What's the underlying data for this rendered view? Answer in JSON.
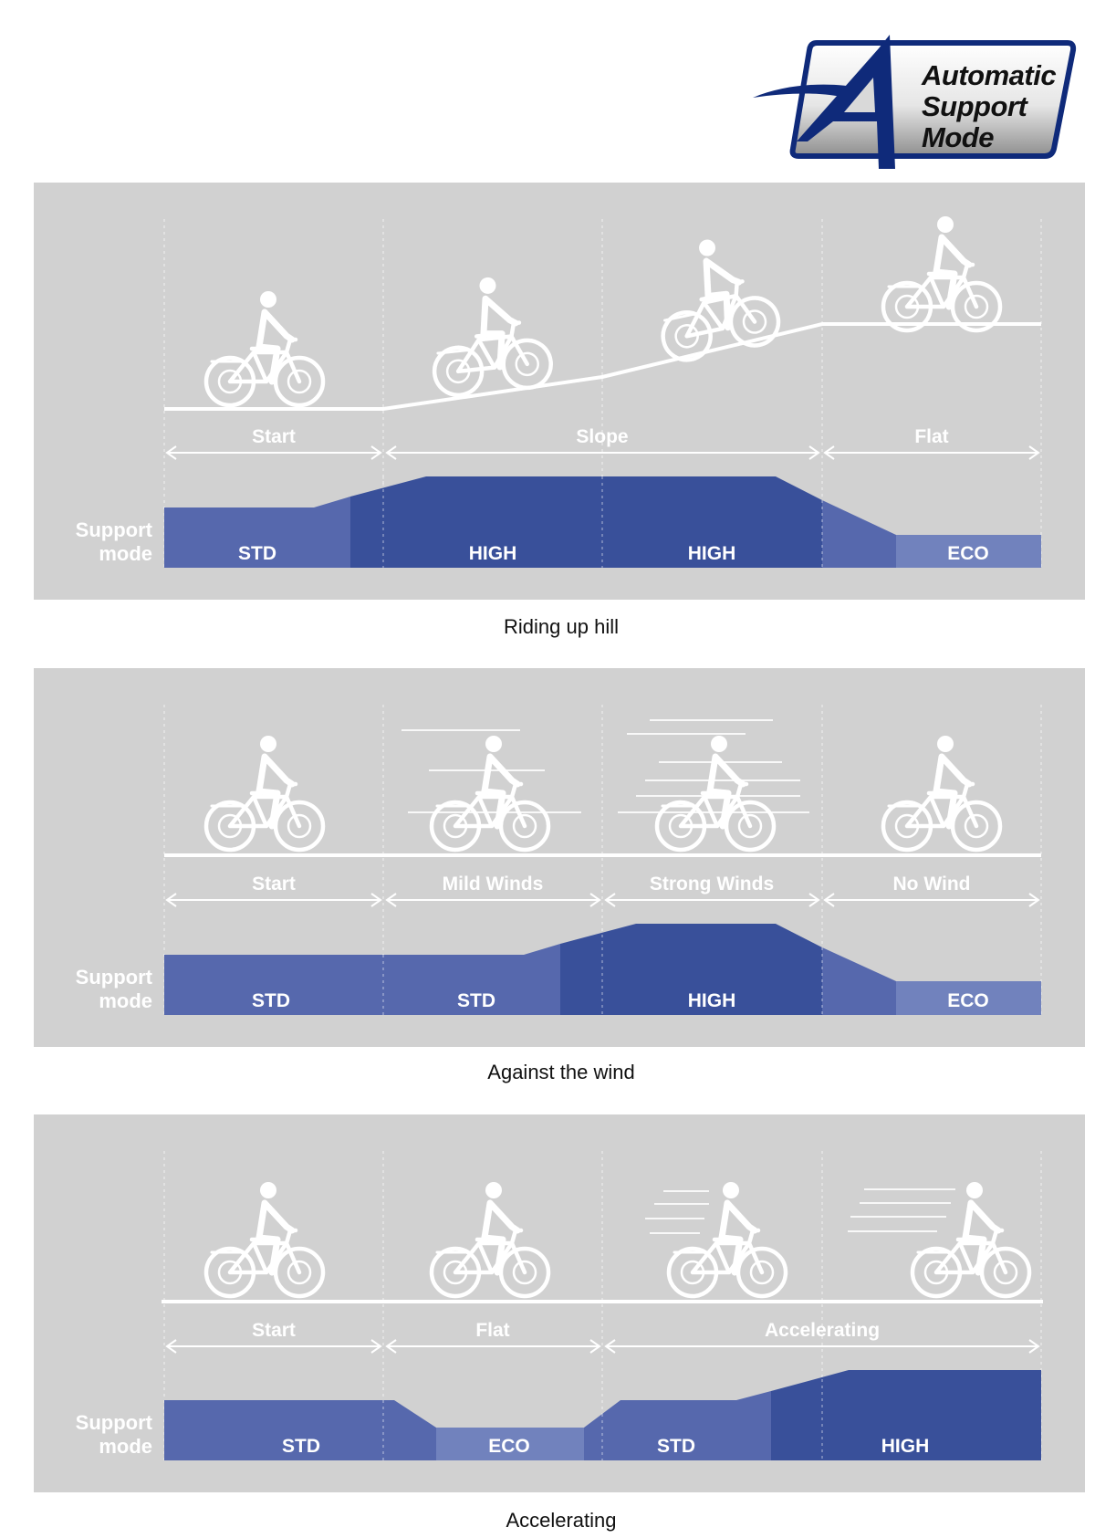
{
  "logo": {
    "line1": "Automatic",
    "line2": "Support",
    "line3": "Mode",
    "icon": "letter-a-swoosh-logo",
    "colors": {
      "frame": "#0f2a7a",
      "gradient_top": "#ffffff",
      "gradient_bottom": "#9a9a9a"
    }
  },
  "colors": {
    "panel_bg": "#d1d1d1",
    "std": "#5668ad",
    "high": "#39509a",
    "eco": "#7182bd",
    "line": "#ffffff"
  },
  "support_label": {
    "line1": "Support",
    "line2": "mode"
  },
  "panels": [
    {
      "caption": "Riding up hill",
      "segments": [
        "Start",
        "Slope",
        "Flat"
      ],
      "modes": [
        "STD",
        "HIGH",
        "HIGH",
        "ECO"
      ],
      "icons": [
        "cyclist-icon",
        "cyclist-icon",
        "cyclist-icon",
        "cyclist-icon"
      ]
    },
    {
      "caption": "Against the wind",
      "segments": [
        "Start",
        "Mild Winds",
        "Strong Winds",
        "No Wind"
      ],
      "modes": [
        "STD",
        "STD",
        "HIGH",
        "ECO"
      ],
      "icons": [
        "cyclist-icon",
        "cyclist-wind-icon",
        "cyclist-wind-icon",
        "cyclist-icon"
      ]
    },
    {
      "caption": "Accelerating",
      "segments": [
        "Start",
        "Flat",
        "Accelerating"
      ],
      "modes": [
        "STD",
        "ECO",
        "STD",
        "HIGH"
      ],
      "icons": [
        "cyclist-icon",
        "cyclist-icon",
        "cyclist-speed-icon",
        "cyclist-speed-icon"
      ]
    }
  ]
}
